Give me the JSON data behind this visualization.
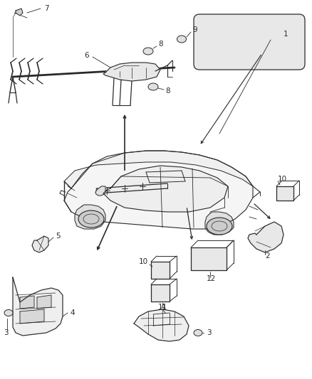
{
  "bg_color": "#ffffff",
  "line_color": "#2a2a2a",
  "fig_width": 4.38,
  "fig_height": 5.33,
  "dpi": 100,
  "label_fs": 7.5
}
